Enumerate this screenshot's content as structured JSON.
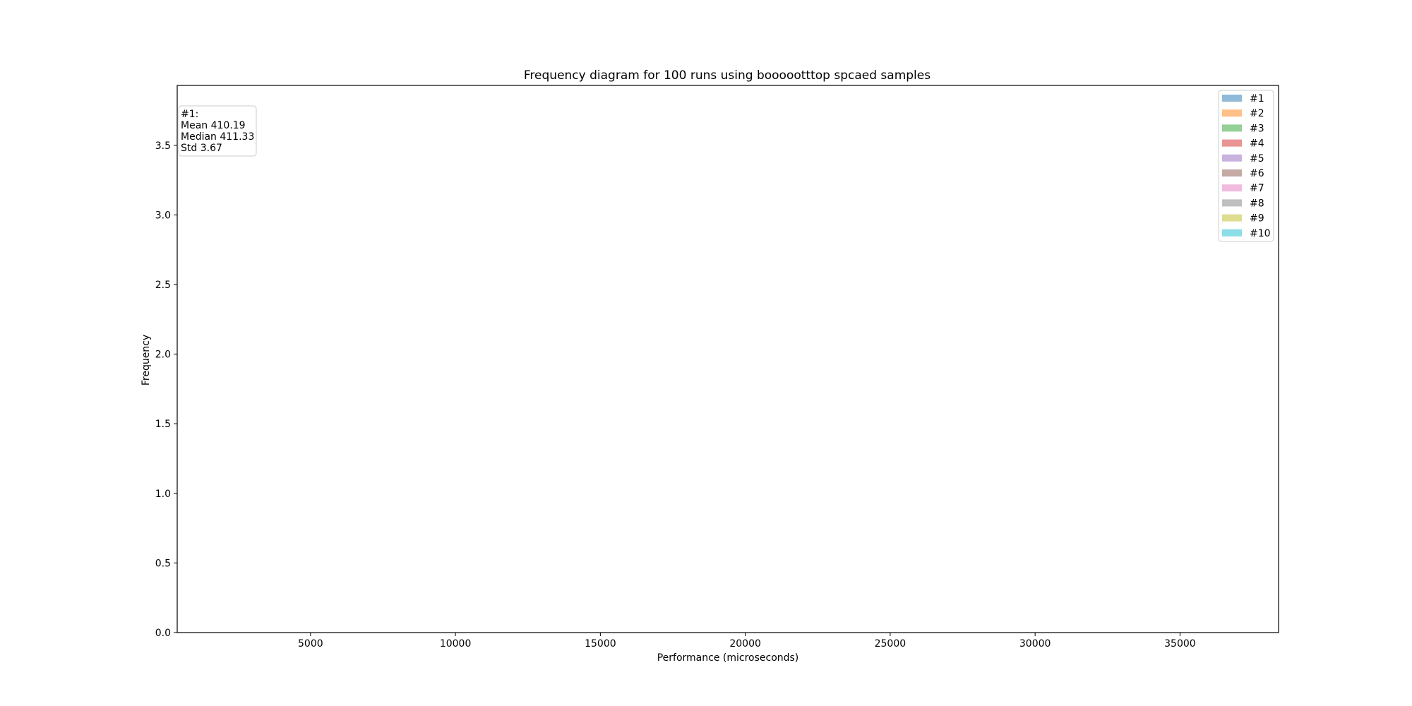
{
  "chart_data": {
    "type": "bar",
    "title": "Frequency diagram for 100 runs using boooootttop spcaed samples",
    "xlabel": "Performance (microseconds)",
    "ylabel": "Frequency",
    "xlim": [
      400,
      38400
    ],
    "ylim": [
      0,
      3.93
    ],
    "xticks": [
      5000,
      10000,
      15000,
      20000,
      25000,
      30000,
      35000
    ],
    "yticks": [
      0.0,
      0.5,
      1.0,
      1.5,
      2.0,
      2.5,
      3.0,
      3.5
    ],
    "grid": false,
    "legend_position": "top-right",
    "series": [
      {
        "name": "#1",
        "color": "#1f77b4",
        "values": []
      },
      {
        "name": "#2",
        "color": "#ff7f0e",
        "values": []
      },
      {
        "name": "#3",
        "color": "#2ca02c",
        "values": []
      },
      {
        "name": "#4",
        "color": "#d62728",
        "values": []
      },
      {
        "name": "#5",
        "color": "#9467bd",
        "values": []
      },
      {
        "name": "#6",
        "color": "#8c564b",
        "values": []
      },
      {
        "name": "#7",
        "color": "#e377c2",
        "values": []
      },
      {
        "name": "#8",
        "color": "#7f7f7f",
        "values": []
      },
      {
        "name": "#9",
        "color": "#bcbd22",
        "values": []
      },
      {
        "name": "#10",
        "color": "#17becf",
        "values": []
      }
    ],
    "stats_box": {
      "position": "top-left",
      "lines": [
        "#1:",
        "Mean 410.19",
        "Median 411.33",
        "Std 3.67"
      ]
    }
  }
}
